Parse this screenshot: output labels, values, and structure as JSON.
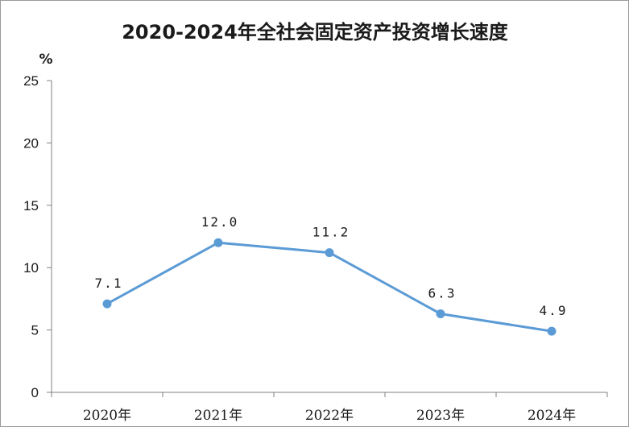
{
  "chart_data": {
    "type": "line",
    "title": "2020-2024年全社会固定资产投资增长速度",
    "unit": "%",
    "categories": [
      "2020年",
      "2021年",
      "2022年",
      "2023年",
      "2024年"
    ],
    "series": [
      {
        "values": [
          7.1,
          12.0,
          11.2,
          6.3,
          4.9
        ],
        "labels": [
          "7.1",
          "12.0",
          "11.2",
          "6.3",
          "4.9"
        ],
        "color": "#5b9bd5"
      }
    ],
    "yticks": [
      "0",
      "5",
      "10",
      "15",
      "20",
      "25"
    ],
    "ylim": [
      0,
      25
    ],
    "grid": false,
    "legend": "none"
  }
}
